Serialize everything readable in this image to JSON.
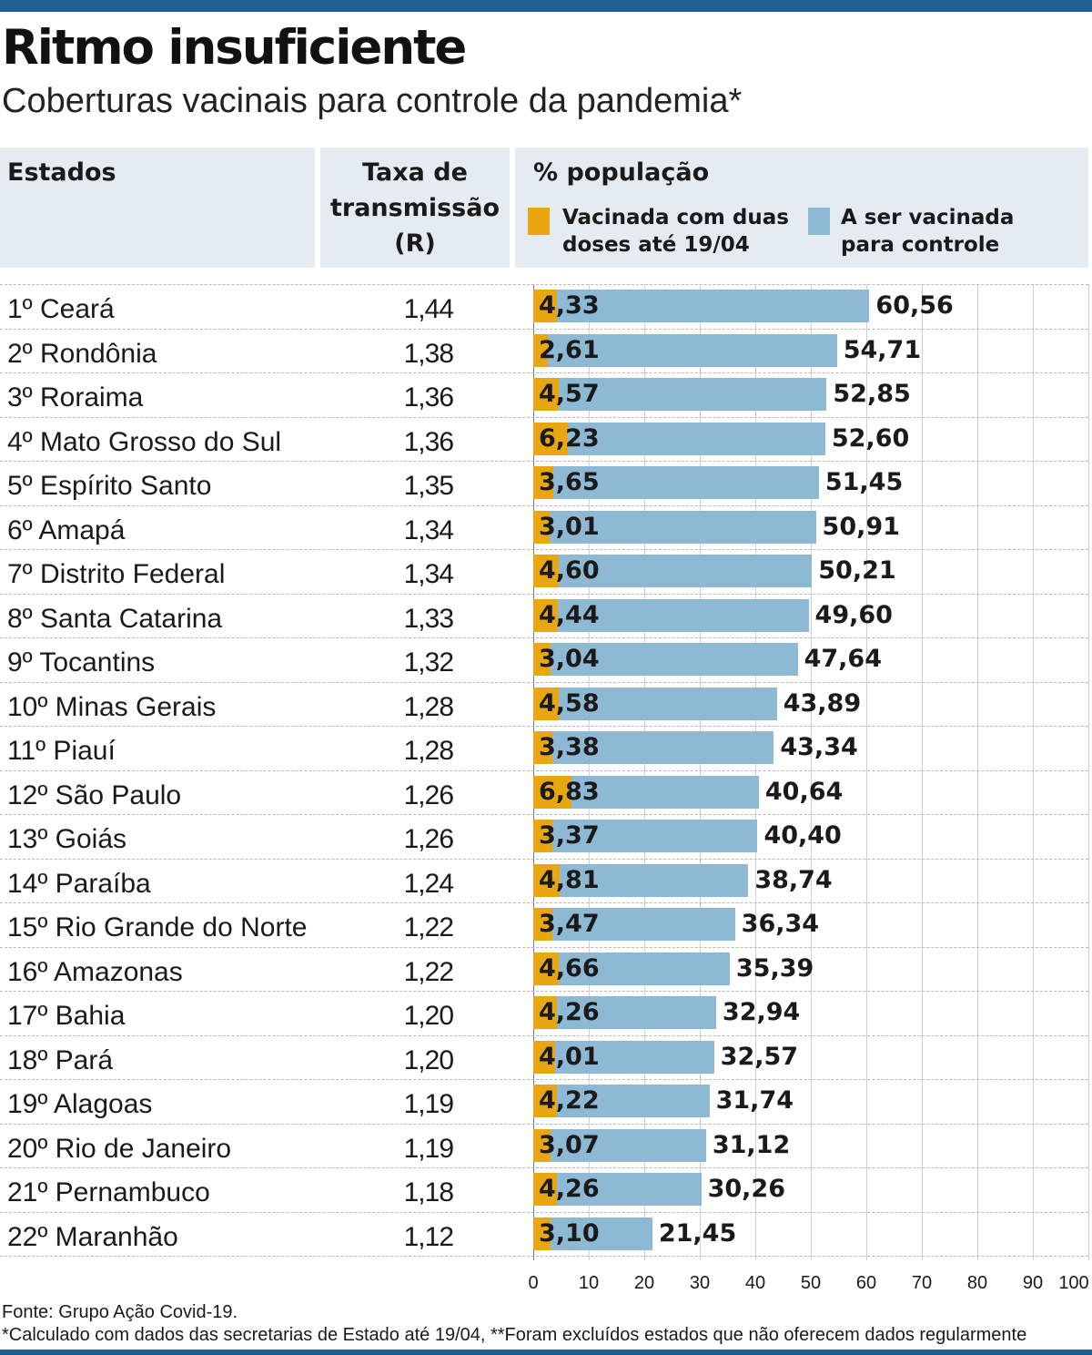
{
  "title": "Ritmo insuficiente",
  "subtitle": "Coberturas vacinais para controle da pandemia*",
  "header": {
    "col_states": "Estados",
    "col_rate_line1": "Taxa de",
    "col_rate_line2": "transmissão",
    "col_rate_line3": "(R)",
    "col_pop": "% população",
    "legend_vaccinated_line1": "Vacinada com duas",
    "legend_vaccinated_line2": "doses até 19/04",
    "legend_control_line1": "A ser vacinada",
    "legend_control_line2": "para controle"
  },
  "colors": {
    "vaccinated": "#e8a711",
    "control": "#8db9d4",
    "header_bg": "#e4ecf1",
    "brand_bar": "#1f5f8f"
  },
  "chart_data": {
    "type": "bar",
    "orientation": "horizontal",
    "categories": [
      "1º Ceará",
      "2º Rondônia",
      "3º Roraima",
      "4º Mato Grosso do Sul",
      "5º Espírito Santo",
      "6º Amapá",
      "7º Distrito Federal",
      "8º Santa Catarina",
      "9º Tocantins",
      "10º Minas Gerais",
      "11º Piauí",
      "12º São Paulo",
      "13º Goiás",
      "14º Paraíba",
      "15º Rio Grande do Norte",
      "16º Amazonas",
      "17º Bahia",
      "18º Pará",
      "19º Alagoas",
      "20º Rio de Janeiro",
      "21º Pernambuco",
      "22º Maranhão"
    ],
    "transmission_rate": [
      "1,44",
      "1,38",
      "1,36",
      "1,36",
      "1,35",
      "1,34",
      "1,34",
      "1,33",
      "1,32",
      "1,28",
      "1,28",
      "1,26",
      "1,26",
      "1,24",
      "1,22",
      "1,22",
      "1,20",
      "1,20",
      "1,19",
      "1,19",
      "1,18",
      "1,12"
    ],
    "series": [
      {
        "name": "Vacinada com duas doses até 19/04",
        "values": [
          4.33,
          2.61,
          4.57,
          6.23,
          3.65,
          3.01,
          4.6,
          4.44,
          3.04,
          4.58,
          3.38,
          6.83,
          3.37,
          4.81,
          3.47,
          4.66,
          4.26,
          4.01,
          4.22,
          3.07,
          4.26,
          3.1
        ],
        "labels": [
          "4,33",
          "2,61",
          "4,57",
          "6,23",
          "3,65",
          "3,01",
          "4,60",
          "4,44",
          "3,04",
          "4,58",
          "3,38",
          "6,83",
          "3,37",
          "4,81",
          "3,47",
          "4,66",
          "4,26",
          "4,01",
          "4,22",
          "3,07",
          "4,26",
          "3,10"
        ]
      },
      {
        "name": "A ser vacinada para controle",
        "values": [
          60.56,
          54.71,
          52.85,
          52.6,
          51.45,
          50.91,
          50.21,
          49.6,
          47.64,
          43.89,
          43.34,
          40.64,
          40.4,
          38.74,
          36.34,
          35.39,
          32.94,
          32.57,
          31.74,
          31.12,
          30.26,
          21.45
        ],
        "labels": [
          "60,56",
          "54,71",
          "52,85",
          "52,60",
          "51,45",
          "50,91",
          "50,21",
          "49,60",
          "47,64",
          "43,89",
          "43,34",
          "40,64",
          "40,40",
          "38,74",
          "36,34",
          "35,39",
          "32,94",
          "32,57",
          "31,74",
          "31,12",
          "30,26",
          "21,45"
        ]
      }
    ],
    "xlim": [
      0,
      100
    ],
    "xticks": [
      0,
      10,
      20,
      30,
      40,
      50,
      60,
      70,
      80,
      90,
      100
    ],
    "grid": true
  },
  "footer": {
    "source": "Fonte: Grupo Ação Covid-19.",
    "note": "*Calculado com dados das secretarias de Estado até 19/04, **Foram excluídos estados que não oferecem dados regularmente"
  }
}
